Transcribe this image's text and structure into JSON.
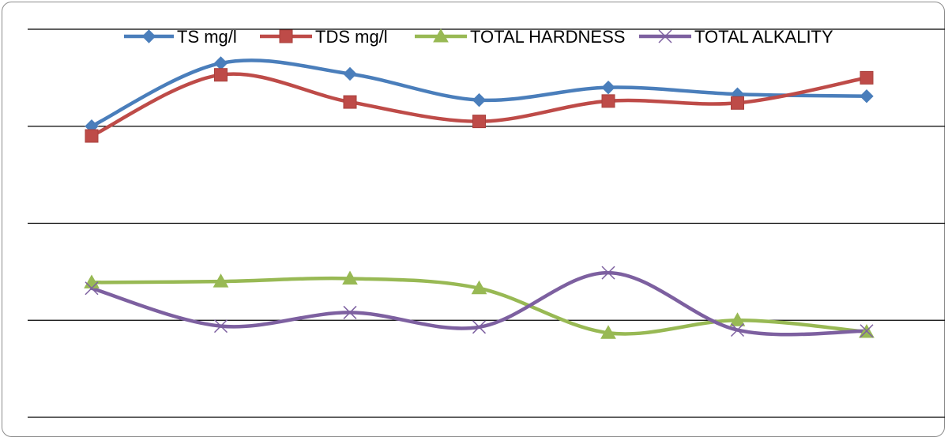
{
  "chart_data": {
    "type": "line",
    "title": "",
    "xlabel": "",
    "ylabel": "",
    "x": [
      1,
      2,
      3,
      4,
      5,
      6,
      7
    ],
    "ylim": [
      0,
      4
    ],
    "gridlines": [
      0,
      1,
      2,
      3,
      4
    ],
    "grid": true,
    "smooth": true,
    "legend_position": "top",
    "series": [
      {
        "name": "TS mg/l",
        "color": "#4a7ebb",
        "marker": "diamond",
        "values": [
          3.0,
          3.65,
          3.54,
          3.27,
          3.4,
          3.33,
          3.31
        ]
      },
      {
        "name": "TDS mg/l",
        "color": "#be4b48",
        "marker": "square",
        "values": [
          2.9,
          3.53,
          3.25,
          3.05,
          3.26,
          3.24,
          3.5
        ]
      },
      {
        "name": "TOTAL HARDNESS",
        "color": "#98b954",
        "marker": "triangle",
        "values": [
          1.39,
          1.4,
          1.43,
          1.33,
          0.87,
          1.0,
          0.88
        ]
      },
      {
        "name": "TOTAL ALKALITY",
        "color": "#7d60a0",
        "marker": "x",
        "values": [
          1.33,
          0.94,
          1.08,
          0.93,
          1.49,
          0.9,
          0.89
        ]
      }
    ]
  }
}
